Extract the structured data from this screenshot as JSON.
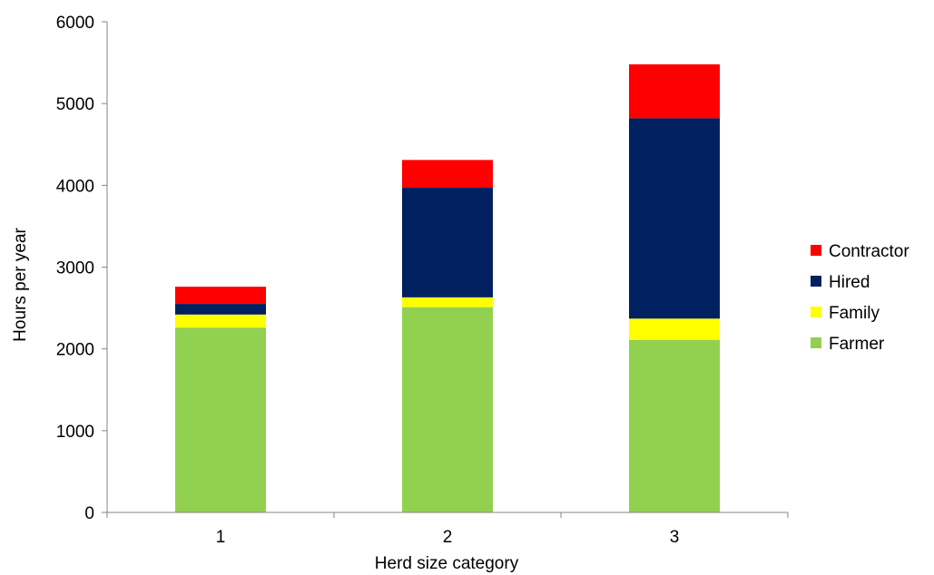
{
  "chart_data": {
    "type": "bar",
    "stacked": true,
    "title": "",
    "xlabel": "Herd size category",
    "ylabel": "Hours per year",
    "categories": [
      "1",
      "2",
      "3"
    ],
    "ylim": [
      0,
      6000
    ],
    "yticks": [
      0,
      1000,
      2000,
      3000,
      4000,
      5000,
      6000
    ],
    "grid": false,
    "legend_position": "right",
    "series": [
      {
        "name": "Farmer",
        "color": "#92D050",
        "values": [
          2260,
          2510,
          2110
        ]
      },
      {
        "name": "Family",
        "color": "#FFFF00",
        "values": [
          160,
          120,
          260
        ]
      },
      {
        "name": "Hired",
        "color": "#002060",
        "values": [
          130,
          1340,
          2450
        ]
      },
      {
        "name": "Contractor",
        "color": "#FF0000",
        "values": [
          210,
          340,
          660
        ]
      }
    ],
    "legend_order": [
      "Contractor",
      "Hired",
      "Family",
      "Farmer"
    ]
  }
}
